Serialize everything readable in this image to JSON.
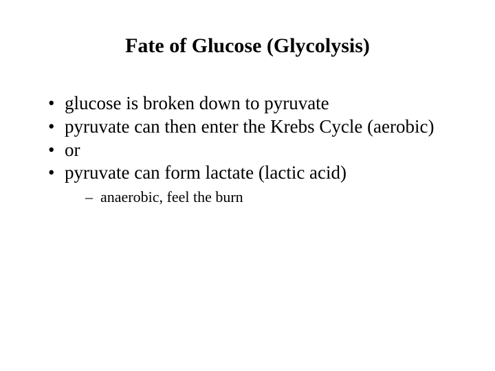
{
  "title": "Fate of Glucose (Glycolysis)",
  "bullets": [
    "glucose is broken down to pyruvate",
    "pyruvate can then enter the Krebs Cycle (aerobic)",
    "or",
    "pyruvate can form lactate (lactic acid)"
  ],
  "sub_bullets": [
    "anaerobic, feel the burn"
  ],
  "colors": {
    "background": "#ffffff",
    "text": "#000000"
  },
  "typography": {
    "family": "Times New Roman",
    "title_size_pt": 30,
    "title_weight": "bold",
    "bullet_size_pt": 27,
    "sub_bullet_size_pt": 22
  }
}
